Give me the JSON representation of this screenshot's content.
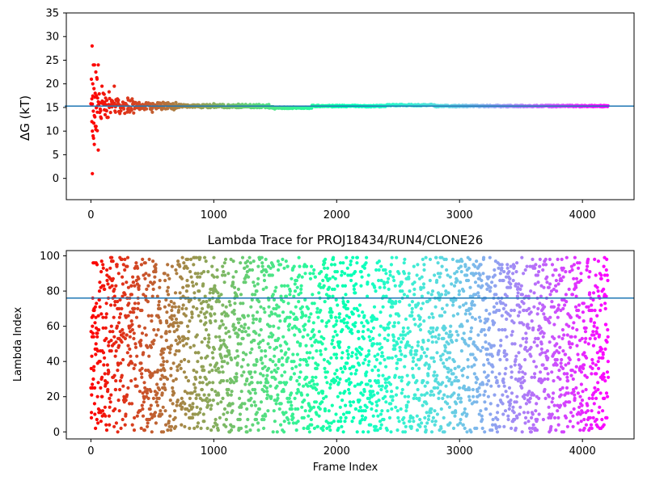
{
  "chart_data": [
    {
      "type": "scatter",
      "title": "",
      "xlabel": "",
      "ylabel": "ΔG (kT)",
      "xlim": [
        -200,
        4420
      ],
      "ylim": [
        -4.5,
        35
      ],
      "xticks": [
        0,
        1000,
        2000,
        3000,
        4000
      ],
      "yticks": [
        0,
        5,
        10,
        15,
        20,
        25,
        30,
        35
      ],
      "grid": false,
      "colormap": "rainbow",
      "reference_line": {
        "y": 15.3,
        "color": "#1f77b4"
      },
      "series": [
        {
          "points_sampled": [
            [
              10,
              28.0
            ],
            [
              12,
              1.0
            ],
            [
              20,
              24.0
            ],
            [
              30,
              24.0
            ],
            [
              40,
              22.5
            ],
            [
              50,
              21.0
            ],
            [
              60,
              24.0
            ],
            [
              15,
              20.0
            ],
            [
              25,
              19.0
            ],
            [
              35,
              18.0
            ],
            [
              45,
              17.5
            ],
            [
              55,
              17.0
            ],
            [
              8,
              12.0
            ],
            [
              12,
              10.0
            ],
            [
              18,
              9.0
            ],
            [
              22,
              8.5
            ],
            [
              28,
              7.2
            ],
            [
              32,
              13.0
            ],
            [
              42,
              11.0
            ],
            [
              52,
              14.0
            ],
            [
              60,
              6.0
            ],
            [
              70,
              16.0
            ],
            [
              80,
              13.0
            ],
            [
              90,
              19.5
            ],
            [
              100,
              18.0
            ],
            [
              110,
              14.5
            ],
            [
              120,
              17.0
            ],
            [
              130,
              16.5
            ],
            [
              150,
              15.0
            ],
            [
              170,
              16.5
            ],
            [
              190,
              19.5
            ],
            [
              200,
              14.0
            ],
            [
              250,
              15.0
            ],
            [
              300,
              17.0
            ],
            [
              350,
              15.8
            ],
            [
              400,
              15.5
            ],
            [
              450,
              16.0
            ],
            [
              500,
              14.0
            ],
            [
              550,
              15.0
            ],
            [
              600,
              15.5
            ],
            [
              700,
              15.0
            ],
            [
              800,
              15.2
            ],
            [
              1000,
              15.8
            ],
            [
              1200,
              15.7
            ],
            [
              1400,
              15.5
            ],
            [
              1600,
              14.9
            ],
            [
              1800,
              15.2
            ],
            [
              2000,
              15.4
            ],
            [
              2200,
              15.3
            ],
            [
              2400,
              15.3
            ],
            [
              2600,
              15.5
            ],
            [
              2800,
              15.4
            ],
            [
              3000,
              15.2
            ],
            [
              3200,
              15.2
            ],
            [
              3400,
              15.3
            ],
            [
              3600,
              15.3
            ],
            [
              3800,
              15.3
            ],
            [
              4000,
              15.3
            ],
            [
              4200,
              15.3
            ]
          ]
        }
      ]
    },
    {
      "type": "scatter",
      "title": "Lambda Trace for PROJ18434/RUN4/CLONE26",
      "xlabel": "Frame Index",
      "ylabel": "Lambda Index",
      "xlim": [
        -200,
        4420
      ],
      "ylim": [
        -4,
        103
      ],
      "xticks": [
        0,
        1000,
        2000,
        3000,
        4000
      ],
      "yticks": [
        0,
        20,
        40,
        60,
        80,
        100
      ],
      "grid": false,
      "colormap": "rainbow",
      "reference_line": {
        "y": 76,
        "color": "#1f77b4"
      },
      "series": [
        {
          "frames": {
            "start": 0,
            "end": 4210
          },
          "values_range": [
            0,
            99
          ],
          "distribution": "scattered uniformly between 0 and 99 across all frames"
        }
      ]
    }
  ]
}
